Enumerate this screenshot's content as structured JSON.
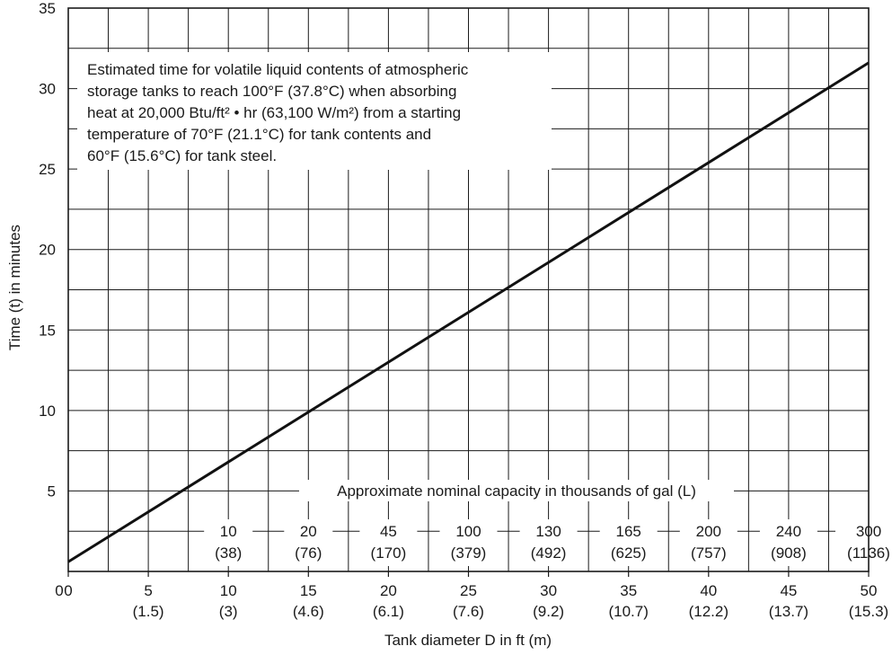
{
  "chart_data": {
    "type": "line",
    "title": "",
    "xlabel": "Tank diameter D in ft (m)",
    "ylabel": "Time (t) in minutes",
    "xlim": [
      0,
      50
    ],
    "ylim": [
      0,
      35
    ],
    "grid": true,
    "x_ticks": [
      {
        "value": 0,
        "label": "0",
        "sub": ""
      },
      {
        "value": 5,
        "label": "5",
        "sub": "(1.5)"
      },
      {
        "value": 10,
        "label": "10",
        "sub": "(3)"
      },
      {
        "value": 15,
        "label": "15",
        "sub": "(4.6)"
      },
      {
        "value": 20,
        "label": "20",
        "sub": "(6.1)"
      },
      {
        "value": 25,
        "label": "25",
        "sub": "(7.6)"
      },
      {
        "value": 30,
        "label": "30",
        "sub": "(9.2)"
      },
      {
        "value": 35,
        "label": "35",
        "sub": "(10.7)"
      },
      {
        "value": 40,
        "label": "40",
        "sub": "(12.2)"
      },
      {
        "value": 45,
        "label": "45",
        "sub": "(13.7)"
      },
      {
        "value": 50,
        "label": "50",
        "sub": "(15.3)"
      }
    ],
    "y_ticks": [
      5,
      10,
      15,
      20,
      25,
      30,
      35
    ],
    "series": [
      {
        "x": [
          0,
          50
        ],
        "y": [
          0.6,
          31.6
        ]
      }
    ],
    "annotation": [
      "Estimated time for volatile liquid contents of atmospheric",
      "storage tanks to reach 100°F (37.8°C) when absorbing",
      "heat at 20,000 Btu/ft² • hr (63,100 W/m²) from a starting",
      "temperature of 70°F (21.1°C) for tank contents and",
      "60°F (15.6°C) for tank steel."
    ],
    "capacity_scale": {
      "title": "Approximate nominal capacity in thousands of gal (L)",
      "entries": [
        {
          "x": 10,
          "gal": "10",
          "liters": "(38)"
        },
        {
          "x": 15,
          "gal": "20",
          "liters": "(76)"
        },
        {
          "x": 20,
          "gal": "45",
          "liters": "(170)"
        },
        {
          "x": 25,
          "gal": "100",
          "liters": "(379)"
        },
        {
          "x": 30,
          "gal": "130",
          "liters": "(492)"
        },
        {
          "x": 35,
          "gal": "165",
          "liters": "(625)"
        },
        {
          "x": 40,
          "gal": "200",
          "liters": "(757)"
        },
        {
          "x": 45,
          "gal": "240",
          "liters": "(908)"
        },
        {
          "x": 50,
          "gal": "300",
          "liters": "(1136)"
        }
      ]
    },
    "colors": {
      "ink": "#1a1a1a",
      "background": "#ffffff"
    }
  }
}
